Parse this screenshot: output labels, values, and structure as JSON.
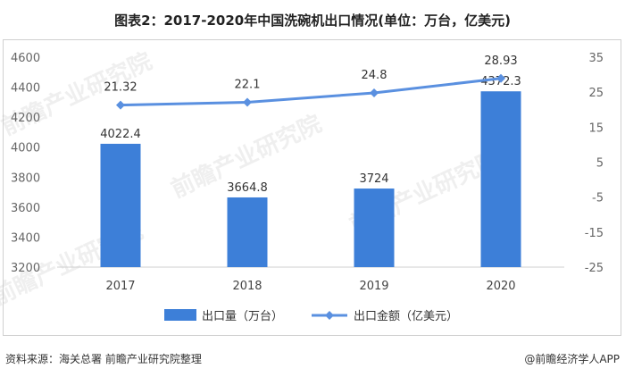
{
  "title": "图表2：2017-2020年中国洗碗机出口情况(单位：万台，亿美元)",
  "footer": {
    "source": "资料来源：海关总署 前瞻产业研究院整理",
    "brand": "@前瞻经济学人APP"
  },
  "watermarks": [
    "前瞻产业研究院",
    "前瞻产业研究院",
    "前瞻产业研究院",
    "前瞻产业研究院"
  ],
  "colors": {
    "bar": "#3d7fd8",
    "line": "#5a90e0",
    "axis_text": "#666666"
  },
  "chart_data": {
    "type": "bar",
    "title": "图表2：2017-2020年中国洗碗机出口情况(单位：万台，亿美元)",
    "categories": [
      "2017",
      "2018",
      "2019",
      "2020"
    ],
    "series": [
      {
        "name": "出口量（万台）",
        "type": "bar",
        "axis": "left",
        "values": [
          4022.4,
          3664.8,
          3724,
          4372.3
        ],
        "labels": [
          "4022.4",
          "3664.8",
          "3724",
          "4372.3"
        ]
      },
      {
        "name": "出口金额（亿美元）",
        "type": "line",
        "axis": "right",
        "values": [
          21.32,
          22.1,
          24.8,
          28.93
        ],
        "labels": [
          "21.32",
          "22.1",
          "24.8",
          "28.93"
        ]
      }
    ],
    "y_left": {
      "ylim": [
        3200,
        4600
      ],
      "ticks": [
        "3200",
        "3400",
        "3600",
        "3800",
        "4000",
        "4200",
        "4400",
        "4600"
      ]
    },
    "y_right": {
      "ylim": [
        -25,
        35
      ],
      "ticks": [
        "-25",
        "-15",
        "-5",
        "5",
        "15",
        "25",
        "35"
      ]
    },
    "grid": false,
    "legend_position": "bottom"
  }
}
